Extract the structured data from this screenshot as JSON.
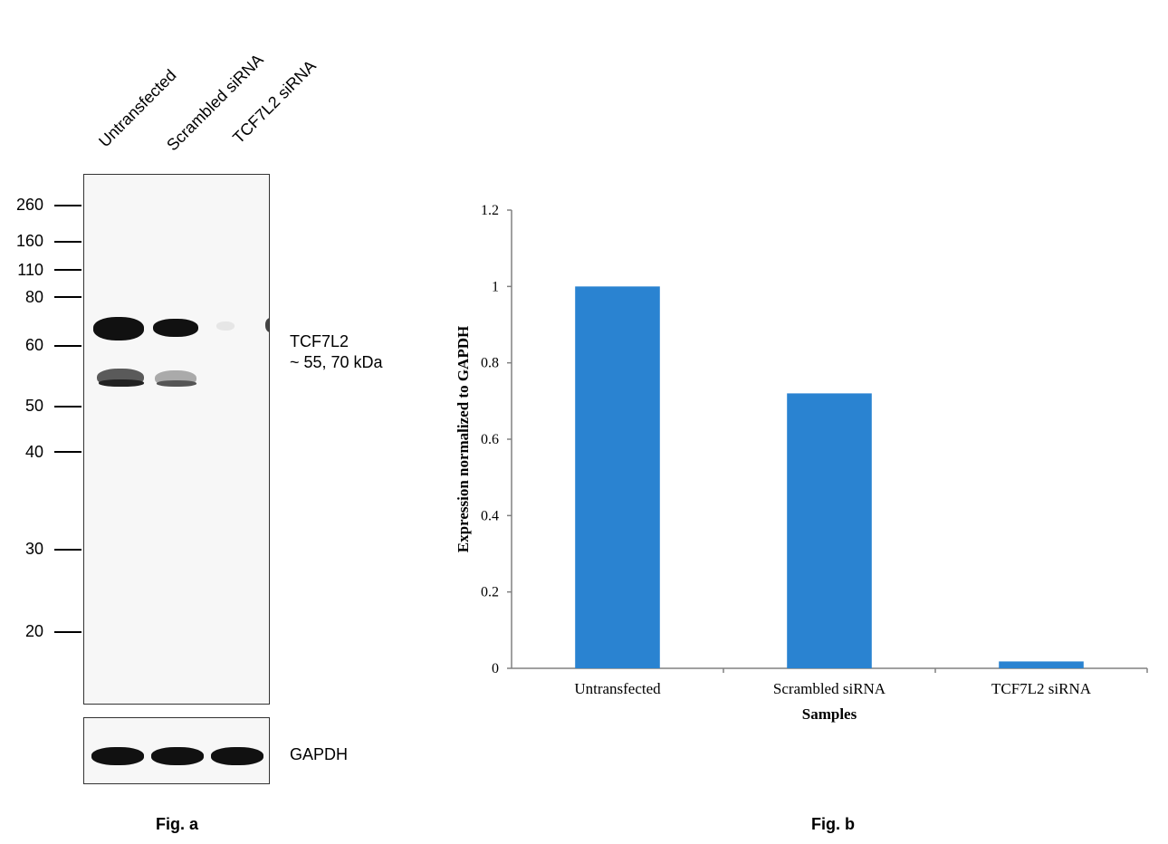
{
  "figure_a": {
    "lanes": [
      "Untransfected",
      "Scrambled siRNA",
      "TCF7L2 siRNA"
    ],
    "mw_markers": [
      "260",
      "160",
      "110",
      "80",
      "60",
      "50",
      "40",
      "30",
      "20"
    ],
    "target_label": "TCF7L2",
    "target_size": "~ 55, 70 kDa",
    "loading_control": "GAPDH",
    "caption": "Fig. a"
  },
  "figure_b": {
    "caption": "Fig. b"
  },
  "chart_data": {
    "type": "bar",
    "categories": [
      "Untransfected",
      "Scrambled siRNA",
      "TCF7L2 siRNA"
    ],
    "values": [
      1.0,
      0.72,
      0.018
    ],
    "xlabel": "Samples",
    "ylabel": "Expression normalized to GAPDH",
    "ylim": [
      0,
      1.2
    ],
    "yticks": [
      0,
      0.2,
      0.4,
      0.6,
      0.8,
      1,
      1.2
    ],
    "grid": false,
    "bar_color": "#2a83d1"
  }
}
